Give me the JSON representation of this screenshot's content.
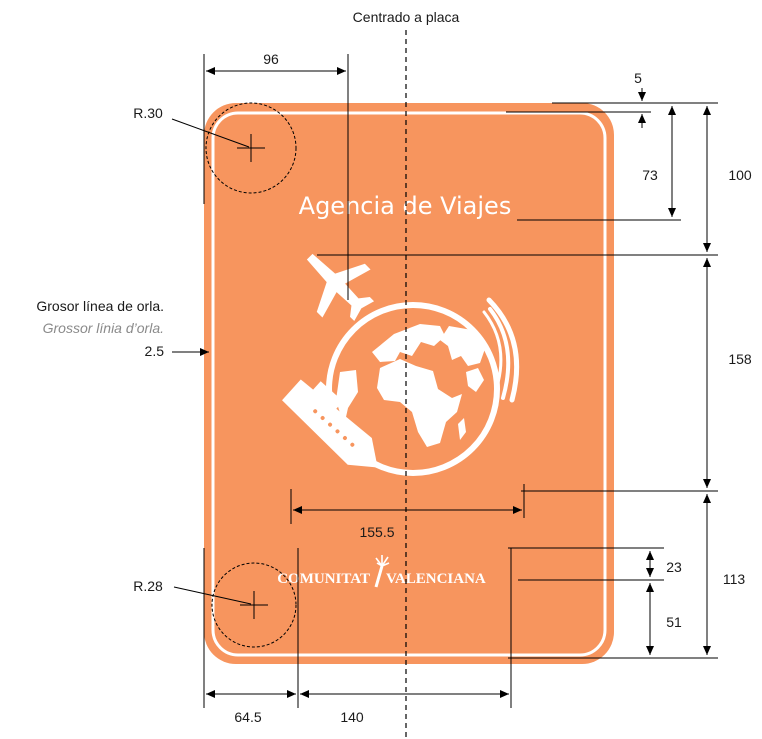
{
  "header": {
    "center_label": "Centrado a placa"
  },
  "sign": {
    "title": "Agencia de Viajes",
    "brand_left": "COMUNITAT",
    "brand_right": "VALENCIANA",
    "fill_color": "#f7955e",
    "border_color": "#ffffff",
    "icon": "travel-agency-pictogram"
  },
  "radii": {
    "top": "R.30",
    "bottom": "R.28"
  },
  "border_note": {
    "es": "Grosor línea de orla.",
    "va": "Grossor línia d’orla.",
    "value": "2.5"
  },
  "dimensions": {
    "top_width": "96",
    "margin_top": "5",
    "title_offset": "73",
    "header_band": "100",
    "pictogram_height": "158",
    "pictogram_width": "155.5",
    "logo_height": "23",
    "logo_bottom": "51",
    "footer_band": "113",
    "left_margin": "64.5",
    "logo_width": "140"
  }
}
